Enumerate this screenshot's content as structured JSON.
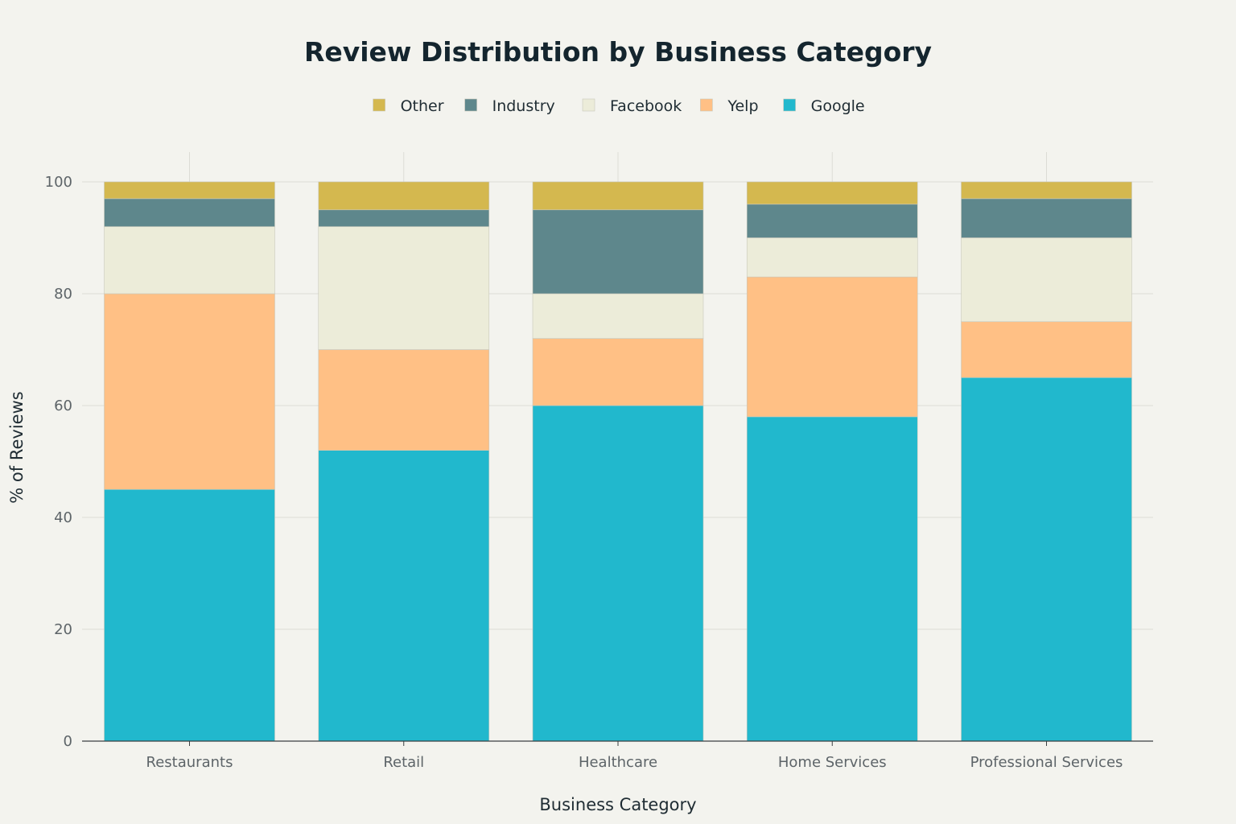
{
  "chart_data": {
    "type": "bar",
    "stacked": true,
    "title": "Review Distribution by Business Category",
    "xlabel": "Business Category",
    "ylabel": "% of Reviews",
    "ylim": [
      0,
      100
    ],
    "yticks": [
      0,
      20,
      40,
      60,
      80,
      100
    ],
    "grid": true,
    "legend_position": "top-center",
    "categories": [
      "Restaurants",
      "Retail",
      "Healthcare",
      "Home Services",
      "Professional Services"
    ],
    "series": [
      {
        "name": "Google",
        "color": "#21b8cd",
        "values": [
          45,
          52,
          60,
          58,
          65
        ]
      },
      {
        "name": "Yelp",
        "color": "#ffc085",
        "values": [
          35,
          18,
          12,
          25,
          10
        ]
      },
      {
        "name": "Facebook",
        "color": "#ececd9",
        "values": [
          12,
          22,
          8,
          7,
          15
        ]
      },
      {
        "name": "Industry",
        "color": "#5e878c",
        "values": [
          5,
          3,
          15,
          6,
          7
        ]
      },
      {
        "name": "Other",
        "color": "#d4b84f",
        "values": [
          3,
          5,
          5,
          4,
          3
        ]
      }
    ],
    "legend_order": [
      "Other",
      "Industry",
      "Facebook",
      "Yelp",
      "Google"
    ]
  }
}
